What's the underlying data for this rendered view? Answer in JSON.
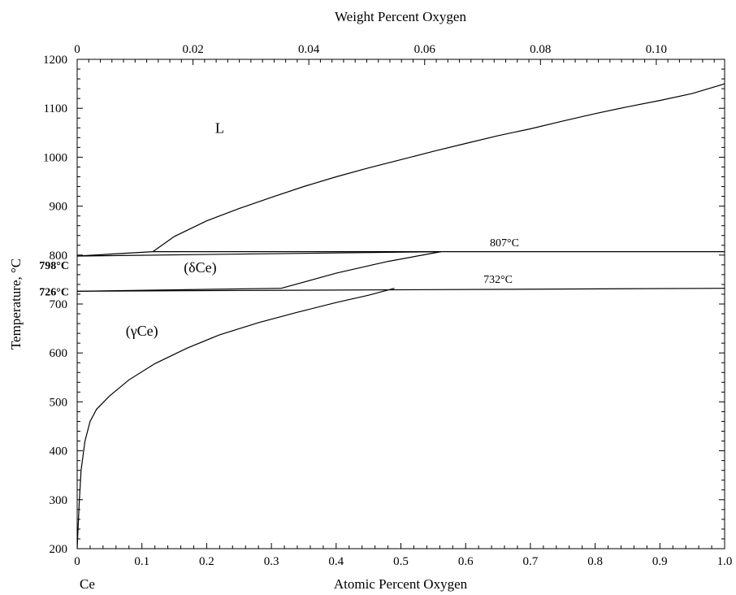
{
  "chart_data": {
    "type": "line",
    "title": "",
    "xlabel": "Atomic Percent Oxygen",
    "x2label": "Weight Percent Oxygen",
    "ylabel": "Temperature, °C",
    "xlim": [
      0,
      1.0
    ],
    "ylim": [
      200,
      1200
    ],
    "x2lim": [
      0,
      0.1118
    ],
    "x_ticks": [
      "0",
      "0.1",
      "0.2",
      "0.3",
      "0.4",
      "0.5",
      "0.6",
      "0.7",
      "0.8",
      "0.9",
      "1.0"
    ],
    "x2_ticks": [
      "0",
      "0.02",
      "0.04",
      "0.06",
      "0.08",
      "0.10"
    ],
    "y_ticks": [
      "200",
      "300",
      "400",
      "500",
      "600",
      "700",
      "800",
      "900",
      "1000",
      "1100",
      "1200"
    ],
    "grid": false,
    "element_label": "Ce",
    "region_labels": [
      {
        "text": "L",
        "x": 0.22,
        "y": 1050
      },
      {
        "text": "(δCe)",
        "x": 0.19,
        "y": 765
      },
      {
        "text": "(γCe)",
        "x": 0.1,
        "y": 635
      }
    ],
    "annotations": [
      {
        "text": "807°C",
        "x": 0.66,
        "y": 818
      },
      {
        "text": "732°C",
        "x": 0.65,
        "y": 743
      }
    ],
    "axis_annotations": [
      {
        "text": "798°C",
        "y": 780,
        "bold": true
      },
      {
        "text": "726°C",
        "y": 726,
        "bold": true
      }
    ],
    "series": [
      {
        "values": [
          [
            0.117,
            807
          ],
          [
            0.15,
            838
          ],
          [
            0.2,
            870
          ],
          [
            0.25,
            895
          ],
          [
            0.3,
            918
          ],
          [
            0.35,
            940
          ],
          [
            0.4,
            960
          ],
          [
            0.45,
            978
          ],
          [
            0.5,
            995
          ],
          [
            0.55,
            1012
          ],
          [
            0.6,
            1028
          ],
          [
            0.65,
            1044
          ],
          [
            0.7,
            1058
          ],
          [
            0.75,
            1074
          ],
          [
            0.8,
            1089
          ],
          [
            0.85,
            1103
          ],
          [
            0.9,
            1116
          ],
          [
            0.95,
            1130
          ],
          [
            1.0,
            1150
          ]
        ]
      },
      {
        "values": [
          [
            0,
            798
          ],
          [
            0.117,
            807
          ]
        ]
      },
      {
        "values": [
          [
            0,
            798
          ],
          [
            0.562,
            807
          ]
        ]
      },
      {
        "values": [
          [
            0.117,
            807
          ],
          [
            1.0,
            807
          ]
        ]
      },
      {
        "values": [
          [
            0.315,
            732
          ],
          [
            0.4,
            763
          ],
          [
            0.48,
            787
          ],
          [
            0.562,
            807
          ]
        ]
      },
      {
        "values": [
          [
            0,
            726
          ],
          [
            0.315,
            732
          ]
        ]
      },
      {
        "values": [
          [
            0,
            726
          ],
          [
            1.0,
            732
          ]
        ]
      },
      {
        "values": [
          [
            0,
            200
          ],
          [
            0.003,
            290
          ],
          [
            0.006,
            360
          ],
          [
            0.012,
            420
          ],
          [
            0.02,
            460
          ],
          [
            0.03,
            485
          ],
          [
            0.05,
            512
          ],
          [
            0.08,
            545
          ],
          [
            0.12,
            578
          ],
          [
            0.17,
            610
          ],
          [
            0.22,
            637
          ],
          [
            0.28,
            662
          ],
          [
            0.34,
            683
          ],
          [
            0.4,
            703
          ],
          [
            0.45,
            718
          ],
          [
            0.49,
            732
          ]
        ]
      }
    ]
  }
}
